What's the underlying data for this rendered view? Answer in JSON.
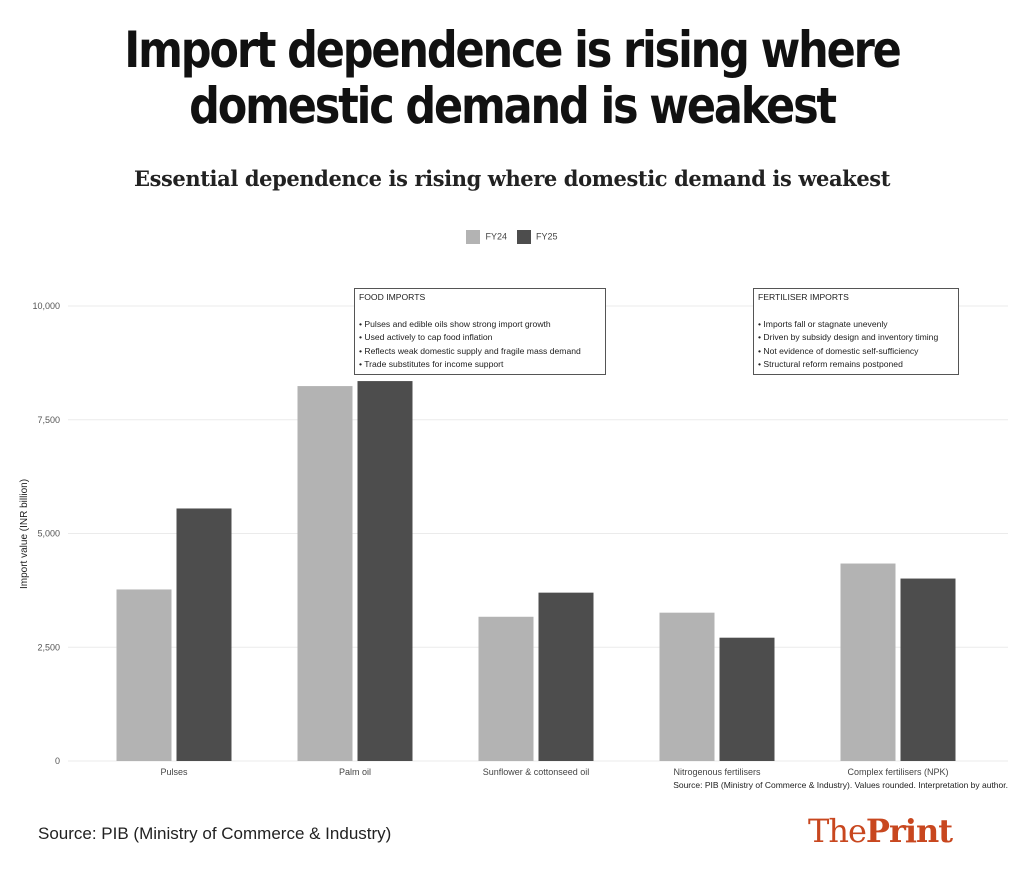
{
  "header": {
    "title": "Import dependence is rising where domestic demand is weakest",
    "subtitle": "Essential dependence is rising where domestic demand is weakest"
  },
  "annotations": [
    {
      "heading": "FOOD IMPORTS",
      "bullets": [
        "• Pulses and edible oils show strong import growth",
        "• Used actively to cap food inflation",
        "• Reflects weak domestic supply and fragile mass demand",
        "• Trade substitutes for income support"
      ]
    },
    {
      "heading": "FERTILISER IMPORTS",
      "bullets": [
        "• Imports fall or stagnate unevenly",
        "• Driven by subsidy design and inventory timing",
        "• Not evidence of domestic self-sufficiency",
        "• Structural reform remains postponed"
      ]
    }
  ],
  "chart_source_note": "Source: PIB (Ministry of Commerce & Industry). Values rounded. Interpretation by author.",
  "footer": {
    "source": "Source: PIB (Ministry of Commerce & Industry)",
    "logo_the": "The",
    "logo_print": "Print",
    "logo_color": "#c8471f"
  },
  "chart_data": {
    "type": "bar",
    "categories": [
      "Pulses",
      "Palm oil",
      "Sunflower & cottonseed oil",
      "Nitrogenous fertilisers",
      "Complex fertilisers (NPK)"
    ],
    "series": [
      {
        "name": "FY24",
        "color": "#b3b3b3",
        "values": [
          3770,
          8240,
          3170,
          3260,
          4340
        ]
      },
      {
        "name": "FY25",
        "color": "#4d4d4d",
        "values": [
          5550,
          8350,
          3700,
          2710,
          4010
        ]
      }
    ],
    "xlabel": "",
    "ylabel": "Import value (INR billion)",
    "ylim": [
      0,
      10000
    ],
    "yticks": [
      0,
      2500,
      5000,
      7500,
      10000
    ],
    "ytick_labels": [
      "0",
      "2,500",
      "5,000",
      "7,500",
      "10,000"
    ],
    "grid": true,
    "legend_position": "top"
  }
}
